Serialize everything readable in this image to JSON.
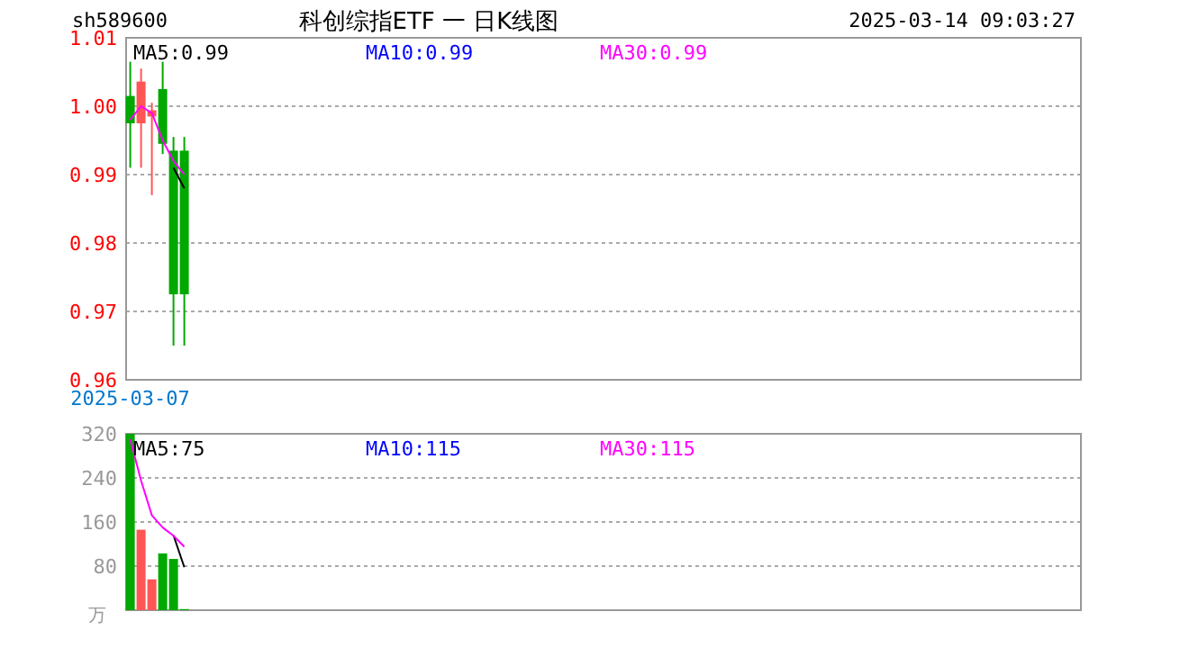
{
  "chart_data": [
    {
      "type": "candlestick",
      "categories": [
        "2025-03-07",
        null,
        null,
        null,
        null,
        null
      ],
      "ohlc": [
        [
          1.0015,
          1.0065,
          0.991,
          0.9975
        ],
        [
          0.9975,
          1.0055,
          0.991,
          1.0036
        ],
        [
          0.9985,
          1.0005,
          0.987,
          0.9994
        ],
        [
          1.0025,
          1.0065,
          0.993,
          0.9945
        ],
        [
          0.9935,
          0.9955,
          0.965,
          0.9725
        ],
        [
          0.9935,
          0.9955,
          0.965,
          0.9725
        ]
      ],
      "colors": [
        "#00a800",
        "#ff5555",
        "#ff5555",
        "#00a800",
        "#00a800",
        "#00a800"
      ],
      "series": [
        {
          "name": "MA5:0.99",
          "type": "line",
          "color": "#000000",
          "values": [
            null,
            null,
            null,
            null,
            0.991,
            0.988
          ]
        },
        {
          "name": "MA10:0.99",
          "type": "line",
          "color": "#0000ff",
          "values": [
            null,
            null,
            null,
            null,
            null,
            null
          ]
        },
        {
          "name": "MA30:0.99",
          "type": "line",
          "color": "#ff00ff",
          "values": [
            0.998,
            1.0,
            0.999,
            0.995,
            0.992,
            0.99
          ]
        }
      ],
      "ylim": [
        0.96,
        1.01
      ],
      "yticks": [
        0.96,
        0.97,
        0.98,
        0.99,
        {
          "value": 1.0,
          "label": "1.00"
        },
        1.01
      ],
      "grid": "y",
      "legend": "top",
      "annotations": [
        "sh589600",
        "科创综指ETF 一 日K线图",
        "2025-03-14 09:03:27"
      ]
    },
    {
      "type": "bar",
      "categories": [
        null,
        null,
        null,
        null,
        null,
        null
      ],
      "ylabel": "万",
      "series": [
        {
          "type": "bar",
          "colors": [
            "#00a800",
            "#ff5555",
            "#ff5555",
            "#00a800",
            "#00a800",
            "#00a800"
          ],
          "values": [
            320,
            146,
            56,
            103,
            93,
            2
          ]
        },
        {
          "name": "MA5:75",
          "type": "line",
          "color": "#000000",
          "values": [
            null,
            null,
            null,
            null,
            136,
            78
          ]
        },
        {
          "name": "MA10:115",
          "type": "line",
          "color": "#0000ff",
          "values": [
            null,
            null,
            null,
            null,
            null,
            null
          ]
        },
        {
          "name": "MA30:115",
          "type": "line",
          "color": "#ff00ff",
          "values": [
            310,
            235,
            172,
            150,
            135,
            115
          ]
        }
      ],
      "ylim": [
        0,
        320
      ],
      "yticks": [
        80,
        160,
        240,
        320
      ],
      "grid": "y",
      "legend": "top"
    }
  ]
}
